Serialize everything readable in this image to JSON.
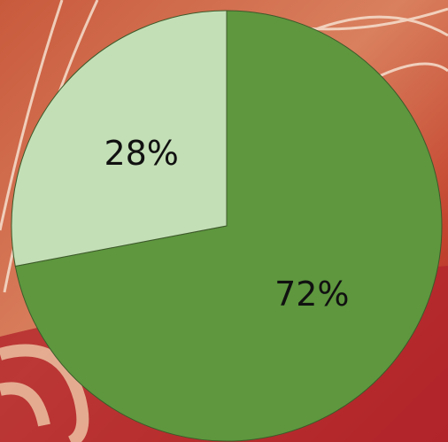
{
  "chart_data": {
    "type": "pie",
    "values": [
      72,
      28
    ],
    "value_labels": [
      "72%",
      "28%"
    ],
    "colors": [
      "#5e973e",
      "#c3dfb6"
    ]
  }
}
